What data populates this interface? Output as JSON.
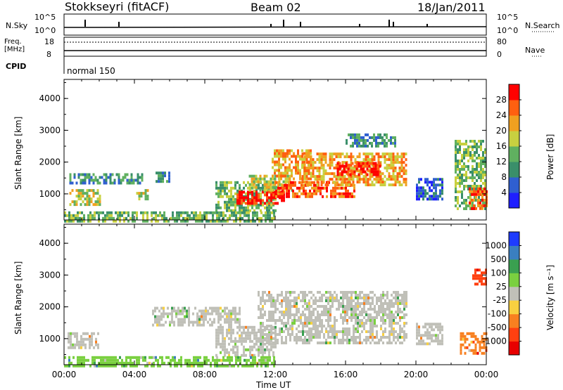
{
  "header": {
    "station": "Stokkseyri (fitACF)",
    "beam": "Beam 02",
    "date": "18/Jan/2011"
  },
  "top_panels": {
    "nsky_label": "N.Sky",
    "nsearch_label": "N.Search",
    "nsky_ticks": [
      "10^5",
      "10^0"
    ],
    "nsearch_ticks": [
      "10^5",
      "10^0"
    ],
    "freq_label": "Freq.",
    "freq_unit": "[MHz]",
    "freq_ticks": [
      "18",
      "8"
    ],
    "nave_label": "Nave",
    "nave_ticks": [
      "80",
      "0"
    ],
    "cpid_label": "CPID",
    "cpid_value": "normal 150"
  },
  "chart_data": [
    {
      "type": "heatmap",
      "name": "power",
      "ylabel": "Slant Range [km]",
      "xlabel": "",
      "yticks": [
        "1000",
        "2000",
        "3000",
        "4000"
      ],
      "ylim": [
        180,
        4600
      ],
      "xlim_hours": [
        0,
        24
      ],
      "colorbar": {
        "label": "Power [dB]",
        "ticks": [
          "4",
          "8",
          "12",
          "16",
          "20",
          "24",
          "28"
        ],
        "colors": [
          "#1f1fff",
          "#2f5fd0",
          "#3a8f6a",
          "#60b060",
          "#c8d040",
          "#f0a020",
          "#ff6010",
          "#ff0000"
        ]
      },
      "echo_regions": [
        {
          "t0": 0.3,
          "t1": 2.0,
          "r0": 700,
          "r1": 1150,
          "level": 4
        },
        {
          "t0": 0.3,
          "t1": 4.5,
          "r0": 1350,
          "r1": 1650,
          "level": 2
        },
        {
          "t0": 4.1,
          "t1": 4.8,
          "r0": 800,
          "r1": 1150,
          "level": 4
        },
        {
          "t0": 5.2,
          "t1": 6.0,
          "r0": 1400,
          "r1": 1700,
          "level": 2
        },
        {
          "t0": 8.6,
          "t1": 12.0,
          "r0": 500,
          "r1": 1400,
          "level": 3
        },
        {
          "t0": 9.8,
          "t1": 12.5,
          "r0": 700,
          "r1": 1100,
          "level": 7
        },
        {
          "t0": 10.5,
          "t1": 13.0,
          "r0": 1100,
          "r1": 1600,
          "level": 4
        },
        {
          "t0": 11.8,
          "t1": 14.0,
          "r0": 1500,
          "r1": 2400,
          "level": 5
        },
        {
          "t0": 12.0,
          "t1": 16.5,
          "r0": 900,
          "r1": 1400,
          "level": 6
        },
        {
          "t0": 13.5,
          "t1": 19.5,
          "r0": 1300,
          "r1": 2300,
          "level": 5
        },
        {
          "t0": 15.5,
          "t1": 18.0,
          "r0": 1600,
          "r1": 2000,
          "level": 7
        },
        {
          "t0": 16.0,
          "t1": 18.8,
          "r0": 2500,
          "r1": 2900,
          "level": 2
        },
        {
          "t0": 20.0,
          "t1": 21.5,
          "r0": 800,
          "r1": 1500,
          "level": 1
        },
        {
          "t0": 22.2,
          "t1": 24.0,
          "r0": 500,
          "r1": 2700,
          "level": 3
        },
        {
          "t0": 23.0,
          "t1": 24.0,
          "r0": 500,
          "r1": 1200,
          "level": 6
        },
        {
          "t0": 0.0,
          "t1": 12.0,
          "r0": 180,
          "r1": 450,
          "level": 3
        }
      ]
    },
    {
      "type": "heatmap",
      "name": "velocity",
      "ylabel": "Slant Range [km]",
      "xlabel": "Time UT",
      "yticks": [
        "1000",
        "2000",
        "3000",
        "4000"
      ],
      "ylim": [
        180,
        4600
      ],
      "xticks": [
        "00:00",
        "04:00",
        "08:00",
        "12:00",
        "16:00",
        "20:00",
        "00:00"
      ],
      "xlim_hours": [
        0,
        24
      ],
      "colorbar": {
        "label": "Velocity [m s⁻¹]",
        "ticks": [
          "1000",
          "500",
          "100",
          "25",
          "-25",
          "-100",
          "-500",
          "-1000"
        ],
        "colors": [
          "#1e3cff",
          "#3a7fc0",
          "#3aa050",
          "#7ad040",
          "#c0c0b8",
          "#f8d040",
          "#f88020",
          "#ff4010",
          "#e80000"
        ]
      },
      "echo_regions": [
        {
          "t0": 0.2,
          "t1": 2.0,
          "r0": 700,
          "r1": 1200,
          "level": 4
        },
        {
          "t0": 8.6,
          "t1": 12.0,
          "r0": 500,
          "r1": 1400,
          "level": 4
        },
        {
          "t0": 11.0,
          "t1": 19.5,
          "r0": 900,
          "r1": 2500,
          "level": 4
        },
        {
          "t0": 5.0,
          "t1": 10.0,
          "r0": 1400,
          "r1": 2000,
          "level": 4
        },
        {
          "t0": 20.0,
          "t1": 21.5,
          "r0": 800,
          "r1": 1500,
          "level": 4
        },
        {
          "t0": 22.5,
          "t1": 24.0,
          "r0": 500,
          "r1": 1200,
          "level": 6
        },
        {
          "t0": 23.2,
          "t1": 24.0,
          "r0": 2700,
          "r1": 3200,
          "level": 7
        },
        {
          "t0": 0.0,
          "t1": 12.0,
          "r0": 180,
          "r1": 450,
          "level": 3
        }
      ]
    }
  ]
}
